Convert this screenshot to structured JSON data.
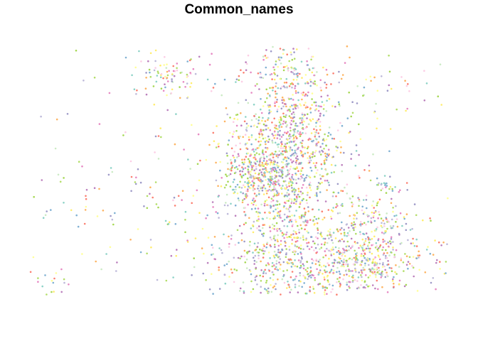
{
  "title": "Common_names",
  "map": {
    "type": "point-map",
    "point_count_approx": 3000,
    "palette": [
      "#8DD3C7",
      "#FFFF99",
      "#BEBADA",
      "#FB8072",
      "#80B1D3",
      "#FDB462",
      "#B3DE69",
      "#FCCDE5",
      "#BC80BD",
      "#CCEBC5",
      "#FFED6F",
      "#9E9AC8",
      "#E78AC3",
      "#A6D854"
    ],
    "legend": "none",
    "axes": "none"
  }
}
